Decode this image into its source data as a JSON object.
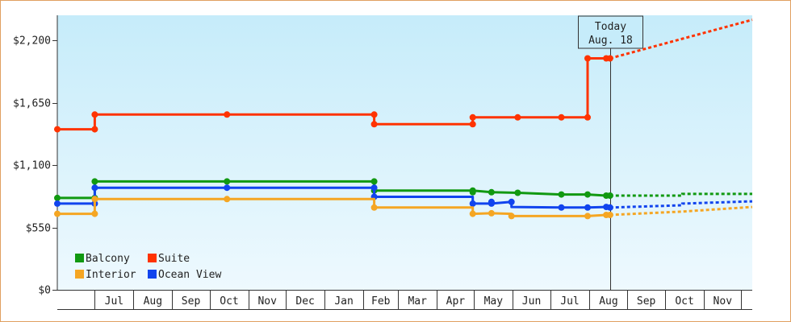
{
  "chart_data": {
    "type": "line",
    "step": true,
    "y_axis": {
      "min": 0,
      "max": 2420,
      "ticks": [
        0,
        550,
        1100,
        1650,
        2200
      ],
      "tick_labels": [
        "$0",
        "$550",
        "$1,100",
        "$1,650",
        "$2,200"
      ]
    },
    "x_axis": {
      "start": "2025-06-01",
      "end": "2026-12-10",
      "months": [
        {
          "label": "Jul",
          "start": "2025-07-01"
        },
        {
          "label": "Aug",
          "start": "2025-08-01"
        },
        {
          "label": "Sep",
          "start": "2025-09-01"
        },
        {
          "label": "Oct",
          "start": "2025-10-01"
        },
        {
          "label": "Nov",
          "start": "2025-11-01"
        },
        {
          "label": "Dec",
          "start": "2025-12-01"
        },
        {
          "label": "Jan",
          "start": "2026-01-01"
        },
        {
          "label": "Feb",
          "start": "2026-02-01"
        },
        {
          "label": "Mar",
          "start": "2026-03-01"
        },
        {
          "label": "Apr",
          "start": "2026-04-01"
        },
        {
          "label": "May",
          "start": "2026-05-01"
        },
        {
          "label": "Jun",
          "start": "2026-06-01"
        },
        {
          "label": "Jul",
          "start": "2026-07-01"
        },
        {
          "label": "Aug",
          "start": "2026-08-01"
        },
        {
          "label": "Sep",
          "start": "2026-09-01"
        },
        {
          "label": "Oct",
          "start": "2026-10-01"
        },
        {
          "label": "Nov",
          "start": "2026-11-01"
        },
        {
          "label": "",
          "start": "2026-12-01"
        }
      ]
    },
    "today": {
      "date": "2026-08-18",
      "label_line1": "Today",
      "label_line2": "Aug. 18"
    },
    "legend": {
      "placement": "bottom-left"
    },
    "series": [
      {
        "name": "Suite",
        "color": "#ff3300",
        "points": [
          {
            "date": "2025-06-01",
            "value": 1415
          },
          {
            "date": "2025-07-01",
            "value": 1415
          },
          {
            "date": "2025-07-01",
            "value": 1545
          },
          {
            "date": "2025-10-15",
            "value": 1545
          },
          {
            "date": "2026-02-10",
            "value": 1545
          },
          {
            "date": "2026-02-10",
            "value": 1460
          },
          {
            "date": "2026-04-30",
            "value": 1460
          },
          {
            "date": "2026-04-30",
            "value": 1520
          },
          {
            "date": "2026-06-05",
            "value": 1520
          },
          {
            "date": "2026-07-10",
            "value": 1520
          },
          {
            "date": "2026-07-31",
            "value": 1520
          },
          {
            "date": "2026-07-31",
            "value": 2040
          },
          {
            "date": "2026-08-15",
            "value": 2040
          },
          {
            "date": "2026-08-18",
            "value": 2040
          }
        ],
        "markers": [
          {
            "date": "2025-06-01",
            "value": 1415
          },
          {
            "date": "2025-07-01",
            "value": 1415
          },
          {
            "date": "2025-07-01",
            "value": 1545
          },
          {
            "date": "2025-10-15",
            "value": 1545
          },
          {
            "date": "2026-02-10",
            "value": 1545
          },
          {
            "date": "2026-02-10",
            "value": 1460
          },
          {
            "date": "2026-04-30",
            "value": 1460
          },
          {
            "date": "2026-04-30",
            "value": 1520
          },
          {
            "date": "2026-06-05",
            "value": 1520
          },
          {
            "date": "2026-07-10",
            "value": 1520
          },
          {
            "date": "2026-07-31",
            "value": 1520
          },
          {
            "date": "2026-07-31",
            "value": 2040
          },
          {
            "date": "2026-08-15",
            "value": 2040
          },
          {
            "date": "2026-08-18",
            "value": 2040
          }
        ],
        "forecast": [
          {
            "date": "2026-08-18",
            "value": 2040
          },
          {
            "date": "2026-12-10",
            "value": 2380
          }
        ]
      },
      {
        "name": "Balcony",
        "color": "#119911",
        "points": [
          {
            "date": "2025-06-01",
            "value": 810
          },
          {
            "date": "2025-07-01",
            "value": 810
          },
          {
            "date": "2025-07-01",
            "value": 955
          },
          {
            "date": "2025-10-15",
            "value": 955
          },
          {
            "date": "2026-02-10",
            "value": 955
          },
          {
            "date": "2026-02-10",
            "value": 875
          },
          {
            "date": "2026-04-30",
            "value": 875
          },
          {
            "date": "2026-05-15",
            "value": 860
          },
          {
            "date": "2026-06-05",
            "value": 855
          },
          {
            "date": "2026-07-10",
            "value": 840
          },
          {
            "date": "2026-07-31",
            "value": 840
          },
          {
            "date": "2026-08-15",
            "value": 830
          },
          {
            "date": "2026-08-18",
            "value": 830
          }
        ],
        "markers": [
          {
            "date": "2025-06-01",
            "value": 810
          },
          {
            "date": "2025-07-01",
            "value": 810
          },
          {
            "date": "2025-07-01",
            "value": 955
          },
          {
            "date": "2025-10-15",
            "value": 955
          },
          {
            "date": "2026-02-10",
            "value": 955
          },
          {
            "date": "2026-02-10",
            "value": 875
          },
          {
            "date": "2026-04-30",
            "value": 875
          },
          {
            "date": "2026-04-30",
            "value": 860
          },
          {
            "date": "2026-05-15",
            "value": 860
          },
          {
            "date": "2026-06-05",
            "value": 855
          },
          {
            "date": "2026-07-10",
            "value": 840
          },
          {
            "date": "2026-07-31",
            "value": 840
          },
          {
            "date": "2026-08-15",
            "value": 830
          },
          {
            "date": "2026-08-18",
            "value": 830
          }
        ],
        "forecast": [
          {
            "date": "2026-08-18",
            "value": 830
          },
          {
            "date": "2026-10-15",
            "value": 830
          },
          {
            "date": "2026-10-15",
            "value": 845
          },
          {
            "date": "2026-12-10",
            "value": 845
          }
        ]
      },
      {
        "name": "Ocean View",
        "color": "#1144ee",
        "points": [
          {
            "date": "2025-06-01",
            "value": 760
          },
          {
            "date": "2025-07-01",
            "value": 760
          },
          {
            "date": "2025-07-01",
            "value": 900
          },
          {
            "date": "2025-10-15",
            "value": 900
          },
          {
            "date": "2026-02-10",
            "value": 900
          },
          {
            "date": "2026-02-10",
            "value": 820
          },
          {
            "date": "2026-04-30",
            "value": 820
          },
          {
            "date": "2026-04-30",
            "value": 760
          },
          {
            "date": "2026-05-15",
            "value": 760
          },
          {
            "date": "2026-05-31",
            "value": 775
          },
          {
            "date": "2026-05-31",
            "value": 730
          },
          {
            "date": "2026-07-10",
            "value": 725
          },
          {
            "date": "2026-07-31",
            "value": 725
          },
          {
            "date": "2026-08-15",
            "value": 730
          },
          {
            "date": "2026-08-18",
            "value": 725
          }
        ],
        "markers": [
          {
            "date": "2025-06-01",
            "value": 760
          },
          {
            "date": "2025-07-01",
            "value": 760
          },
          {
            "date": "2025-07-01",
            "value": 900
          },
          {
            "date": "2025-10-15",
            "value": 900
          },
          {
            "date": "2026-02-10",
            "value": 900
          },
          {
            "date": "2026-02-10",
            "value": 820
          },
          {
            "date": "2026-04-30",
            "value": 760
          },
          {
            "date": "2026-05-15",
            "value": 760
          },
          {
            "date": "2026-05-15",
            "value": 775
          },
          {
            "date": "2026-05-31",
            "value": 775
          },
          {
            "date": "2026-07-10",
            "value": 725
          },
          {
            "date": "2026-07-31",
            "value": 725
          },
          {
            "date": "2026-08-15",
            "value": 730
          },
          {
            "date": "2026-08-18",
            "value": 725
          }
        ],
        "forecast": [
          {
            "date": "2026-08-18",
            "value": 725
          },
          {
            "date": "2026-10-15",
            "value": 745
          },
          {
            "date": "2026-10-15",
            "value": 760
          },
          {
            "date": "2026-12-10",
            "value": 780
          }
        ]
      },
      {
        "name": "Interior",
        "color": "#f5a623",
        "points": [
          {
            "date": "2025-06-01",
            "value": 670
          },
          {
            "date": "2025-07-01",
            "value": 670
          },
          {
            "date": "2025-07-01",
            "value": 800
          },
          {
            "date": "2025-10-15",
            "value": 800
          },
          {
            "date": "2026-02-10",
            "value": 800
          },
          {
            "date": "2026-02-10",
            "value": 725
          },
          {
            "date": "2026-04-30",
            "value": 725
          },
          {
            "date": "2026-04-30",
            "value": 670
          },
          {
            "date": "2026-05-15",
            "value": 675
          },
          {
            "date": "2026-05-31",
            "value": 670
          },
          {
            "date": "2026-05-31",
            "value": 650
          },
          {
            "date": "2026-07-10",
            "value": 650
          },
          {
            "date": "2026-07-31",
            "value": 650
          },
          {
            "date": "2026-08-15",
            "value": 660
          },
          {
            "date": "2026-08-18",
            "value": 660
          }
        ],
        "markers": [
          {
            "date": "2025-06-01",
            "value": 670
          },
          {
            "date": "2025-07-01",
            "value": 670
          },
          {
            "date": "2025-07-01",
            "value": 800
          },
          {
            "date": "2025-10-15",
            "value": 800
          },
          {
            "date": "2026-02-10",
            "value": 725
          },
          {
            "date": "2026-04-30",
            "value": 670
          },
          {
            "date": "2026-05-15",
            "value": 675
          },
          {
            "date": "2026-05-31",
            "value": 650
          },
          {
            "date": "2026-07-31",
            "value": 650
          },
          {
            "date": "2026-08-15",
            "value": 660
          },
          {
            "date": "2026-08-18",
            "value": 660
          }
        ],
        "forecast": [
          {
            "date": "2026-08-18",
            "value": 660
          },
          {
            "date": "2026-10-15",
            "value": 690
          },
          {
            "date": "2026-12-10",
            "value": 730
          }
        ]
      }
    ],
    "legend_items": [
      {
        "name": "Balcony",
        "color": "#119911"
      },
      {
        "name": "Suite",
        "color": "#ff3300"
      },
      {
        "name": "Interior",
        "color": "#f5a623"
      },
      {
        "name": "Ocean View",
        "color": "#1144ee"
      }
    ]
  }
}
